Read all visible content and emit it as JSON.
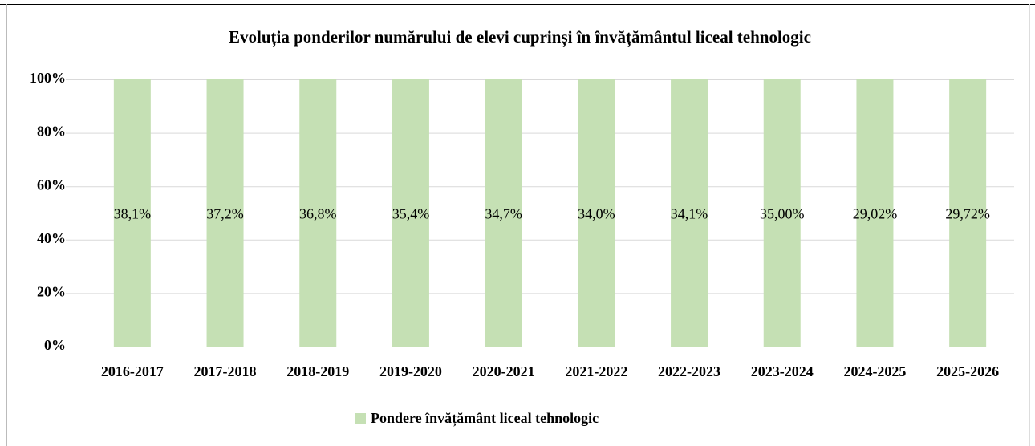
{
  "chart_data": {
    "type": "bar",
    "stacking": "percent",
    "title": "Evoluția ponderilor numărului de elevi cuprinși în învățământul liceal tehnologic",
    "categories": [
      "2016-2017",
      "2017-2018",
      "2018-2019",
      "2019-2020",
      "2020-2021",
      "2021-2022",
      "2022-2023",
      "2023-2024",
      "2024-2025",
      "2025-2026"
    ],
    "series": [
      {
        "name": "Pondere învățământ liceal tehnologic",
        "color": "#c5e0b4",
        "values": [
          38.1,
          37.2,
          36.8,
          35.4,
          34.7,
          34.0,
          34.1,
          35.0,
          29.02,
          29.72
        ],
        "value_labels": [
          "38,1%",
          "37,2%",
          "36,8%",
          "35,4%",
          "34,7%",
          "34,0%",
          "34,1%",
          "35,00%",
          "29,02%",
          "29,72%"
        ]
      }
    ],
    "ylim": [
      0,
      100
    ],
    "yticks": [
      {
        "value": 0,
        "label": "0%"
      },
      {
        "value": 20,
        "label": "20%"
      },
      {
        "value": 40,
        "label": "40%"
      },
      {
        "value": 60,
        "label": "60%"
      },
      {
        "value": 80,
        "label": "80%"
      },
      {
        "value": 100,
        "label": "100%"
      }
    ],
    "grid": true,
    "legend": "bottom"
  }
}
